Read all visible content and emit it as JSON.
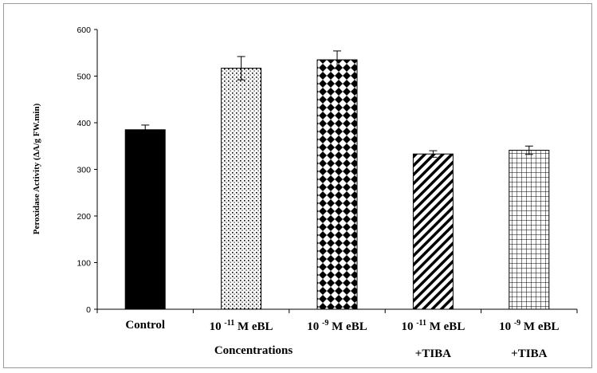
{
  "chart_data": {
    "type": "bar",
    "title": "",
    "xlabel": "Concentrations",
    "ylabel": "Peroxidase Activity (ΔA/g FW.min)",
    "ylim": [
      0,
      600
    ],
    "yticks": [
      "0",
      "100",
      "200",
      "300",
      "400",
      "500",
      "600"
    ],
    "grid": false,
    "categories": [
      {
        "pre": "Control",
        "exp": "",
        "post": "",
        "line2": ""
      },
      {
        "pre": "10 ",
        "exp": "-11",
        "post": " M eBL",
        "line2": ""
      },
      {
        "pre": "10 ",
        "exp": "-9",
        "post": " M eBL",
        "line2": ""
      },
      {
        "pre": "10 ",
        "exp": "-11",
        "post": " M eBL",
        "line2": "+TIBA"
      },
      {
        "pre": "10 ",
        "exp": "-9",
        "post": " M eBL",
        "line2": "+TIBA"
      }
    ],
    "values": [
      385,
      517,
      535,
      333,
      341
    ],
    "errors": [
      10,
      25,
      19,
      7,
      9
    ],
    "patterns": [
      "solid",
      "dots",
      "diamonds",
      "diagonal",
      "grid"
    ]
  }
}
